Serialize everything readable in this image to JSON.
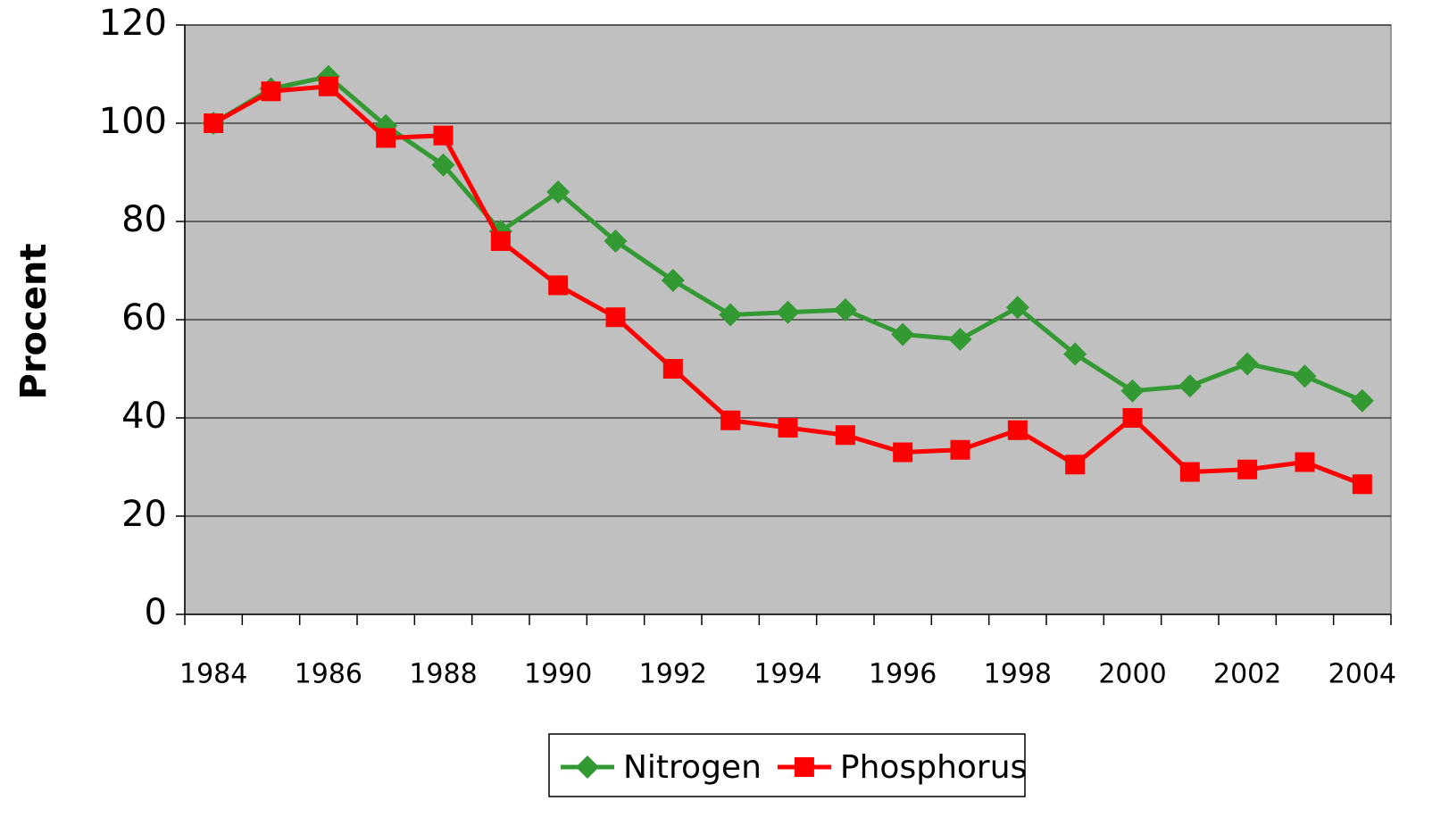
{
  "chart_data": {
    "type": "line",
    "y_label": "Procent",
    "categories": [
      "1984",
      null,
      "1986",
      null,
      "1988",
      null,
      "1990",
      null,
      "1992",
      null,
      "1994",
      null,
      "1996",
      null,
      "1998",
      null,
      "2000",
      null,
      "2002",
      null,
      "2004"
    ],
    "series": [
      {
        "name": "Nitrogen",
        "color": "#339933",
        "marker": "diamond",
        "values": [
          100,
          107,
          109.5,
          99.5,
          91.5,
          78,
          86,
          76,
          68,
          61,
          61.5,
          62,
          57,
          56,
          62.5,
          53,
          45.5,
          46.5,
          51,
          48.5,
          43.5
        ]
      },
      {
        "name": "Phosphorus",
        "color": "#ff0000",
        "marker": "square",
        "values": [
          100,
          106.5,
          107.5,
          97,
          97.5,
          76,
          67,
          60.5,
          50,
          39.5,
          38,
          36.5,
          33,
          33.5,
          37.5,
          30.5,
          40,
          29,
          29.5,
          31,
          26.5
        ]
      }
    ],
    "ylim": [
      0,
      120
    ],
    "yticks": [
      0,
      20,
      40,
      60,
      80,
      100,
      120
    ],
    "grid": true,
    "plot_background": "#c0c0c0",
    "legend": "bottom"
  }
}
